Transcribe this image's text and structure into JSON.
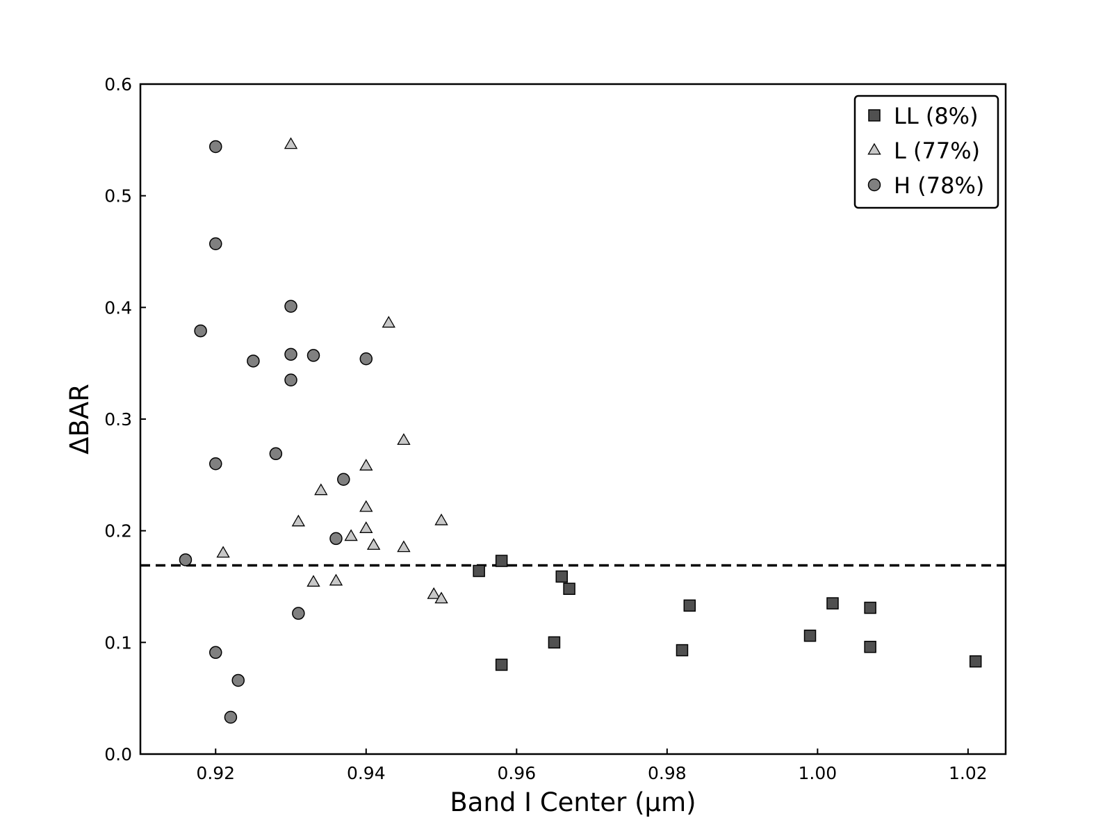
{
  "chart_data": {
    "type": "scatter",
    "title": "",
    "xlabel": "Band I Center (μm)",
    "ylabel": "ΔBAR",
    "xlim": [
      0.91,
      1.025
    ],
    "ylim": [
      0.0,
      0.6
    ],
    "xticks": [
      0.92,
      0.94,
      0.96,
      0.98,
      1.0,
      1.02
    ],
    "xtick_labels": [
      "0.92",
      "0.94",
      "0.96",
      "0.98",
      "1.00",
      "1.02"
    ],
    "yticks": [
      0.0,
      0.1,
      0.2,
      0.3,
      0.4,
      0.5,
      0.6
    ],
    "ytick_labels": [
      "0.0",
      "0.1",
      "0.2",
      "0.3",
      "0.4",
      "0.5",
      "0.6"
    ],
    "grid": false,
    "legend_position": "top-right",
    "reference_line": {
      "orientation": "horizontal",
      "y": 0.169,
      "style": "dashed",
      "color": "#000000"
    },
    "series": [
      {
        "name": "LL (8%)",
        "marker": "square",
        "color": "#505050",
        "points": [
          [
            0.955,
            0.164
          ],
          [
            0.958,
            0.173
          ],
          [
            0.958,
            0.08
          ],
          [
            0.965,
            0.1
          ],
          [
            0.966,
            0.159
          ],
          [
            0.967,
            0.148
          ],
          [
            0.982,
            0.093
          ],
          [
            0.983,
            0.133
          ],
          [
            0.999,
            0.106
          ],
          [
            1.002,
            0.135
          ],
          [
            1.007,
            0.131
          ],
          [
            1.007,
            0.096
          ],
          [
            1.021,
            0.083
          ]
        ]
      },
      {
        "name": "L (77%)",
        "marker": "triangle",
        "color": "#c8c8c8",
        "points": [
          [
            0.93,
            0.546
          ],
          [
            0.943,
            0.386
          ],
          [
            0.945,
            0.281
          ],
          [
            0.94,
            0.258
          ],
          [
            0.934,
            0.236
          ],
          [
            0.94,
            0.221
          ],
          [
            0.931,
            0.208
          ],
          [
            0.95,
            0.209
          ],
          [
            0.94,
            0.202
          ],
          [
            0.938,
            0.195
          ],
          [
            0.941,
            0.187
          ],
          [
            0.945,
            0.185
          ],
          [
            0.921,
            0.18
          ],
          [
            0.933,
            0.154
          ],
          [
            0.936,
            0.155
          ],
          [
            0.949,
            0.143
          ],
          [
            0.95,
            0.139
          ]
        ]
      },
      {
        "name": "H (78%)",
        "marker": "circle",
        "color": "#808080",
        "points": [
          [
            0.92,
            0.544
          ],
          [
            0.92,
            0.457
          ],
          [
            0.93,
            0.401
          ],
          [
            0.918,
            0.379
          ],
          [
            0.93,
            0.358
          ],
          [
            0.933,
            0.357
          ],
          [
            0.94,
            0.354
          ],
          [
            0.925,
            0.352
          ],
          [
            0.93,
            0.335
          ],
          [
            0.928,
            0.269
          ],
          [
            0.92,
            0.26
          ],
          [
            0.937,
            0.246
          ],
          [
            0.936,
            0.193
          ],
          [
            0.916,
            0.174
          ],
          [
            0.931,
            0.126
          ],
          [
            0.92,
            0.091
          ],
          [
            0.923,
            0.066
          ],
          [
            0.922,
            0.033
          ]
        ]
      }
    ]
  }
}
